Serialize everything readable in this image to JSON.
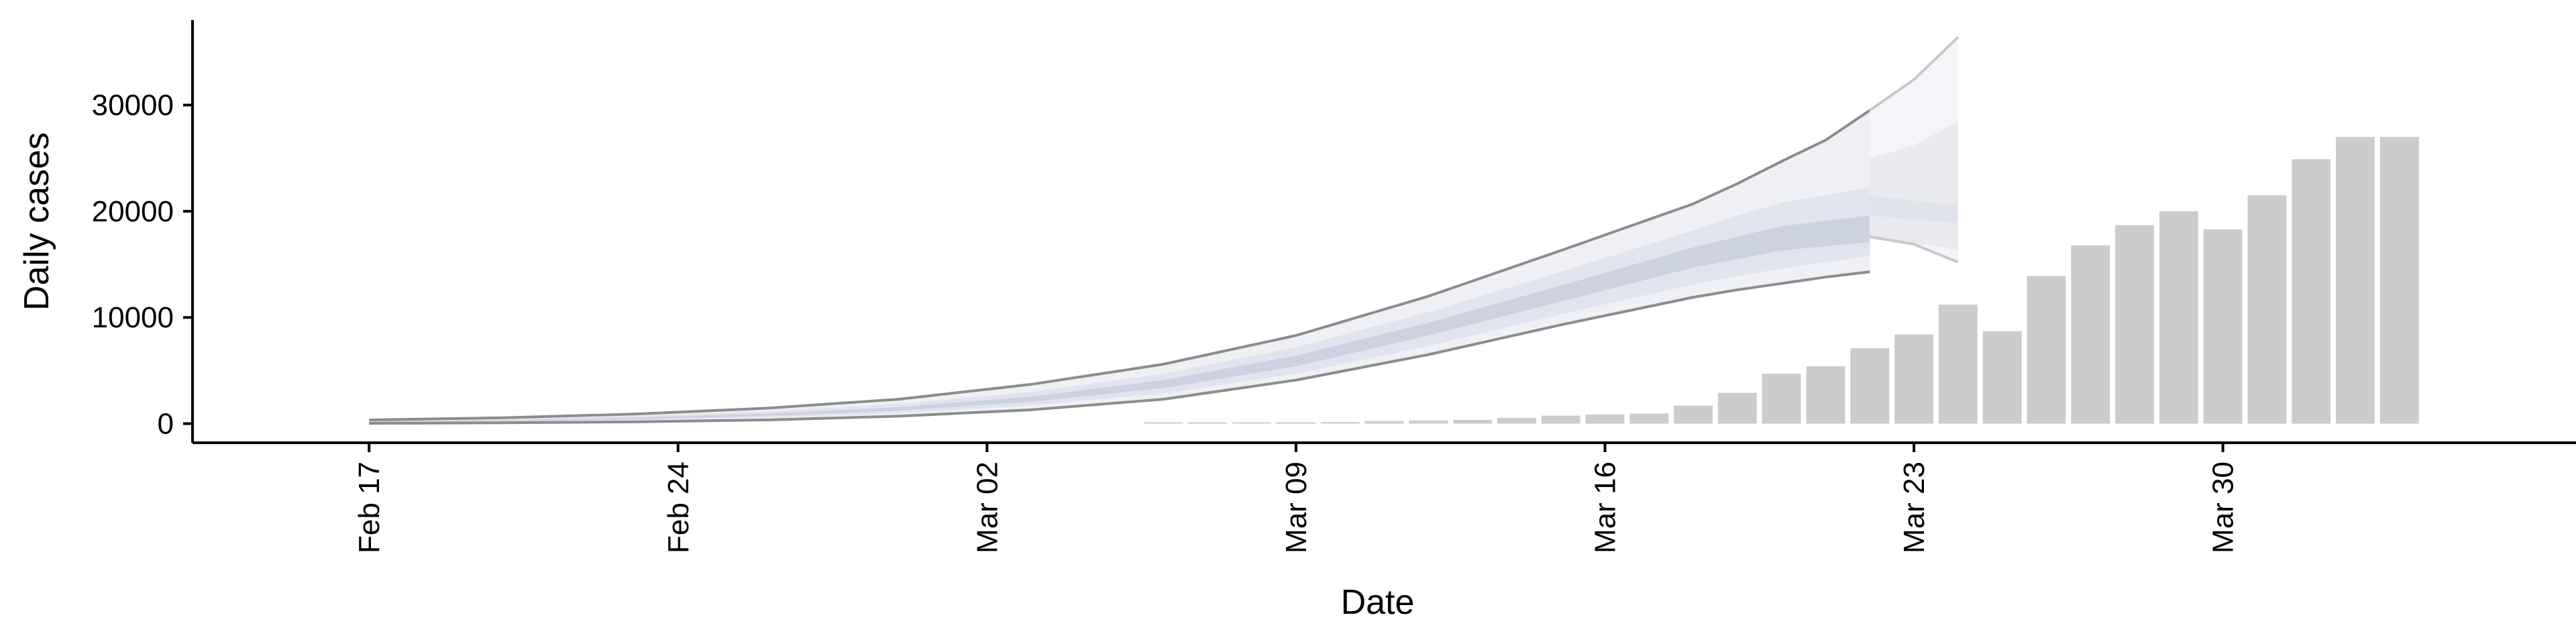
{
  "chart_data": {
    "type": "bar",
    "title": "",
    "xlabel": "Date",
    "ylabel": "Daily cases",
    "ylim": [
      -1800,
      38000
    ],
    "xlim": [
      "2020-02-13",
      "2020-04-07"
    ],
    "x_ticks": [
      "2020-02-17",
      "2020-02-24",
      "2020-03-02",
      "2020-03-09",
      "2020-03-16",
      "2020-03-23",
      "2020-03-30"
    ],
    "x_tick_labels": [
      "Feb 17",
      "Feb 24",
      "Mar 02",
      "Mar 09",
      "Mar 16",
      "Mar 23",
      "Mar 30"
    ],
    "y_ticks": [
      0,
      10000,
      20000,
      30000
    ],
    "y_tick_labels": [
      "0",
      "10000",
      "20000",
      "30000"
    ],
    "grid": false,
    "legend": "none",
    "colors": {
      "bars": "#cccccc",
      "band_outer": "#eef0f5",
      "band_mid": "#e1e4ee",
      "band_inner": "#cdd2e2",
      "band_outline": "#8c8c8c",
      "forecast_outer": "#f4f5f8",
      "forecast_mid": "#e8eaf0",
      "forecast_inner": "#dfe2ea",
      "forecast_outline": "#c8c8c8"
    },
    "bars": {
      "dates": [
        "2020-03-06",
        "2020-03-07",
        "2020-03-08",
        "2020-03-09",
        "2020-03-10",
        "2020-03-11",
        "2020-03-12",
        "2020-03-13",
        "2020-03-14",
        "2020-03-15",
        "2020-03-16",
        "2020-03-17",
        "2020-03-18",
        "2020-03-19",
        "2020-03-20",
        "2020-03-21",
        "2020-03-22",
        "2020-03-23",
        "2020-03-24",
        "2020-03-25",
        "2020-03-26",
        "2020-03-27",
        "2020-03-28",
        "2020-03-29",
        "2020-03-30",
        "2020-03-31",
        "2020-04-01",
        "2020-04-02",
        "2020-04-03"
      ],
      "values": [
        40,
        60,
        80,
        100,
        150,
        250,
        300,
        350,
        550,
        750,
        850,
        950,
        1700,
        2900,
        4700,
        5400,
        7100,
        8400,
        11200,
        8700,
        13900,
        16800,
        18700,
        20000,
        18300,
        21500,
        24900,
        27000,
        27000
      ]
    },
    "estimate": {
      "dates": [
        "2020-02-17",
        "2020-02-20",
        "2020-02-23",
        "2020-02-26",
        "2020-02-29",
        "2020-03-03",
        "2020-03-06",
        "2020-03-09",
        "2020-03-12",
        "2020-03-15",
        "2020-03-18",
        "2020-03-19",
        "2020-03-20",
        "2020-03-21",
        "2020-03-22"
      ],
      "upper": [
        350,
        550,
        900,
        1450,
        2300,
        3700,
        5600,
        8300,
        12000,
        16300,
        20700,
        22600,
        24700,
        26700,
        29500
      ],
      "upper_mid": [
        250,
        420,
        700,
        1150,
        1850,
        3000,
        4700,
        7200,
        10500,
        14300,
        18200,
        19600,
        20800,
        21500,
        22300
      ],
      "upper_inner": [
        180,
        330,
        560,
        940,
        1550,
        2550,
        4100,
        6400,
        9500,
        13000,
        16600,
        17600,
        18600,
        19100,
        19600
      ],
      "lower_inner": [
        120,
        230,
        410,
        720,
        1230,
        2050,
        3350,
        5400,
        8300,
        11500,
        14700,
        15500,
        16300,
        16700,
        17100
      ],
      "lower_mid": [
        80,
        170,
        320,
        570,
        990,
        1700,
        2850,
        4700,
        7300,
        10300,
        13100,
        13900,
        14600,
        15200,
        15800
      ],
      "lower": [
        30,
        80,
        170,
        350,
        700,
        1300,
        2300,
        4100,
        6500,
        9300,
        11900,
        12600,
        13200,
        13800,
        14300
      ]
    },
    "forecast": {
      "dates": [
        "2020-03-22",
        "2020-03-23",
        "2020-03-24"
      ],
      "upper": [
        29500,
        32400,
        36400
      ],
      "upper_mid": [
        25000,
        26200,
        28500
      ],
      "upper_inner": [
        21500,
        21000,
        20600
      ],
      "lower_inner": [
        19600,
        19200,
        18900
      ],
      "lower_mid": [
        17600,
        17000,
        16400
      ],
      "lower": [
        17600,
        16900,
        15200
      ]
    }
  }
}
